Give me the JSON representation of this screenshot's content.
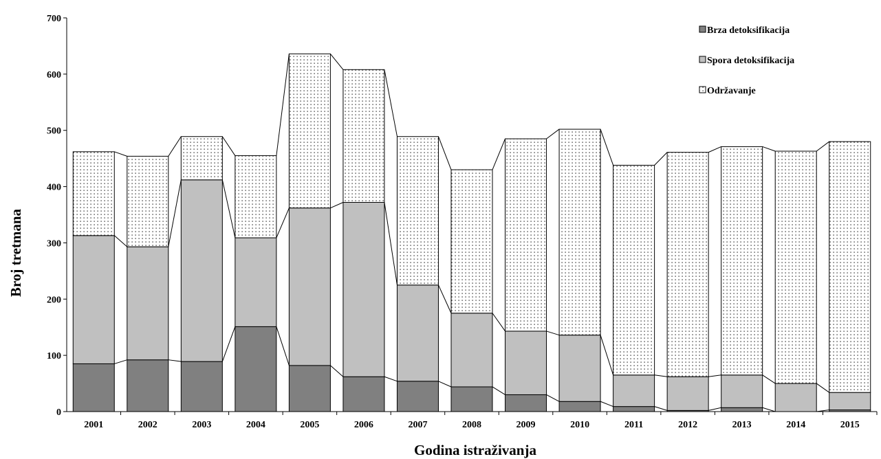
{
  "chart_data": {
    "type": "bar",
    "stacked": true,
    "connector_lines": true,
    "title": "",
    "xlabel": "Godina istraživanja",
    "ylabel": "Broj tretmana",
    "ylim": [
      0,
      700
    ],
    "yticks": [
      0,
      100,
      200,
      300,
      400,
      500,
      600,
      700
    ],
    "grid": false,
    "legend_position": "top-right",
    "categories": [
      "2001",
      "2002",
      "2003",
      "2004",
      "2005",
      "2006",
      "2007",
      "2008",
      "2009",
      "2010",
      "2011",
      "2012",
      "2013",
      "2014",
      "2015"
    ],
    "series": [
      {
        "name": "Brza detoksifikacija",
        "fill": "#808080",
        "pattern": "solid",
        "values": [
          85,
          92,
          89,
          151,
          82,
          62,
          54,
          44,
          30,
          18,
          9,
          2,
          7,
          0,
          3
        ]
      },
      {
        "name": "Spora detoksifikacija",
        "fill": "#c0c0c0",
        "pattern": "solid",
        "values": [
          228,
          201,
          323,
          158,
          280,
          310,
          171,
          131,
          113,
          118,
          56,
          60,
          58,
          50,
          31
        ]
      },
      {
        "name": "Održavanje",
        "fill": "#ffffff",
        "pattern": "dots",
        "values": [
          149,
          161,
          77,
          146,
          274,
          236,
          264,
          255,
          342,
          366,
          373,
          399,
          406,
          413,
          446
        ]
      }
    ]
  }
}
